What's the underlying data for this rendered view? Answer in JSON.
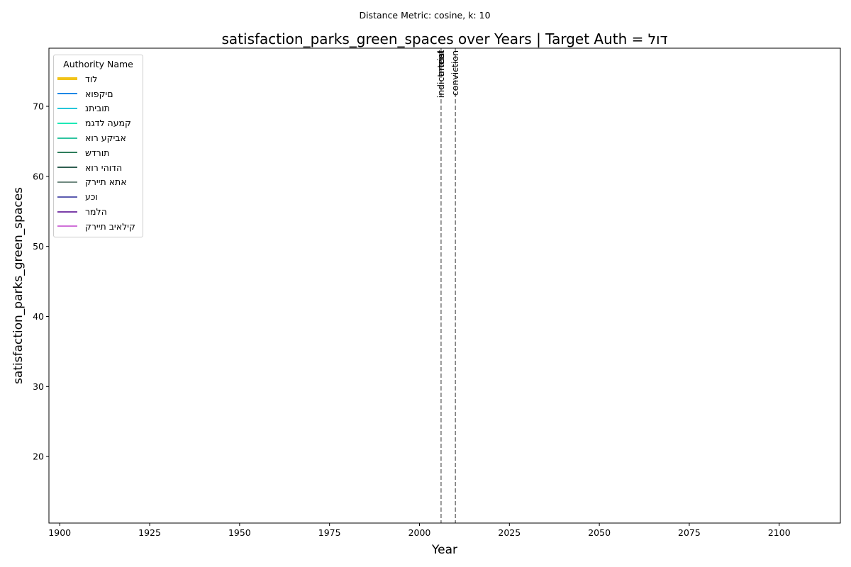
{
  "chart_data": {
    "type": "line",
    "suptitle": "Distance Metric: cosine, k: 10",
    "title": "satisfaction_parks_green_spaces over Years | Target Auth = דול",
    "xlabel": "Year",
    "ylabel": "satisfaction_parks_green_spaces",
    "xlim": [
      1897,
      2117
    ],
    "ylim": [
      10.5,
      78.3
    ],
    "xticks": [
      1900,
      1925,
      1950,
      1975,
      2000,
      2025,
      2050,
      2075,
      2100
    ],
    "yticks": [
      20,
      30,
      40,
      50,
      60,
      70
    ],
    "grid": false,
    "legend": {
      "title": "Authority Name",
      "position": "upper left",
      "entries": [
        {
          "name": "דול",
          "color": "#f2c318",
          "target": true
        },
        {
          "name": "אופקים",
          "color": "#1e88e5"
        },
        {
          "name": "נתיבות",
          "color": "#26c6da"
        },
        {
          "name": "מגדל העמק",
          "color": "#1de9b6"
        },
        {
          "name": "אור עקיבא",
          "color": "#2ec4a0"
        },
        {
          "name": "שדרות",
          "color": "#2e7d5b"
        },
        {
          "name": "אור יהודה",
          "color": "#2f5e50"
        },
        {
          "name": "קריית אתא",
          "color": "#708980"
        },
        {
          "name": "עכו",
          "color": "#5c5cb0"
        },
        {
          "name": "רמלה",
          "color": "#7b3fa8"
        },
        {
          "name": "קריית ביאליק",
          "color": "#d070d8"
        }
      ]
    },
    "series": [],
    "annotations": [
      {
        "x": 2006,
        "labels": [
          "indictment",
          "arrest",
          "trial"
        ]
      },
      {
        "x": 2010,
        "labels": [
          "conviction"
        ]
      }
    ]
  }
}
